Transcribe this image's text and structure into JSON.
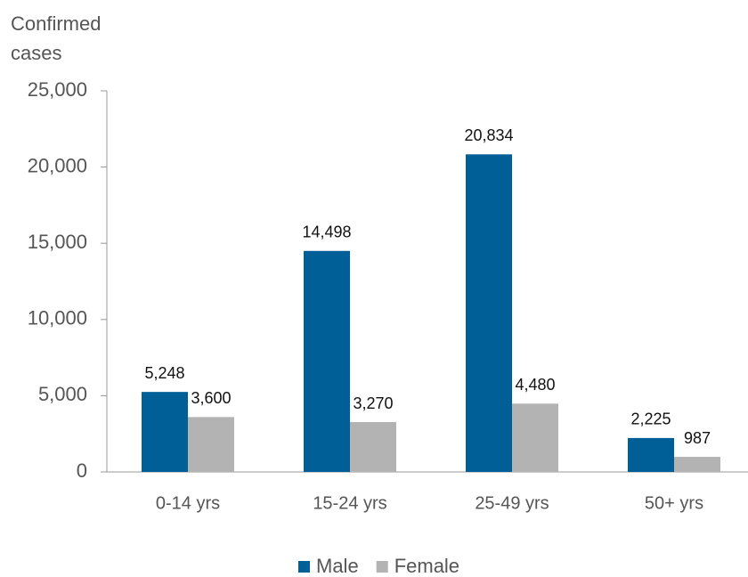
{
  "chart_data": {
    "type": "bar",
    "y_label": "Confirmed cases",
    "categories": [
      "0-14 yrs",
      "15-24 yrs",
      "25-49 yrs",
      "50+ yrs"
    ],
    "series": [
      {
        "name": "Male",
        "color": "#005f96",
        "values": [
          5248,
          14498,
          20834,
          2225
        ],
        "value_labels": [
          "5,248",
          "14,498",
          "20,834",
          "2,225"
        ]
      },
      {
        "name": "Female",
        "color": "#b3b3b3",
        "values": [
          3600,
          3270,
          4480,
          987
        ],
        "value_labels": [
          "3,600",
          "3,270",
          "4,480",
          "987"
        ]
      }
    ],
    "ylim": [
      0,
      25000
    ],
    "yticks": [
      0,
      {
        "value": 5000,
        "label": "5,000"
      },
      {
        "value": 10000,
        "label": "10,000"
      },
      {
        "value": 15000,
        "label": "15,000"
      },
      {
        "value": 20000,
        "label": "20,000"
      },
      {
        "value": 25000,
        "label": "25,000"
      }
    ],
    "legend": "bottom"
  }
}
